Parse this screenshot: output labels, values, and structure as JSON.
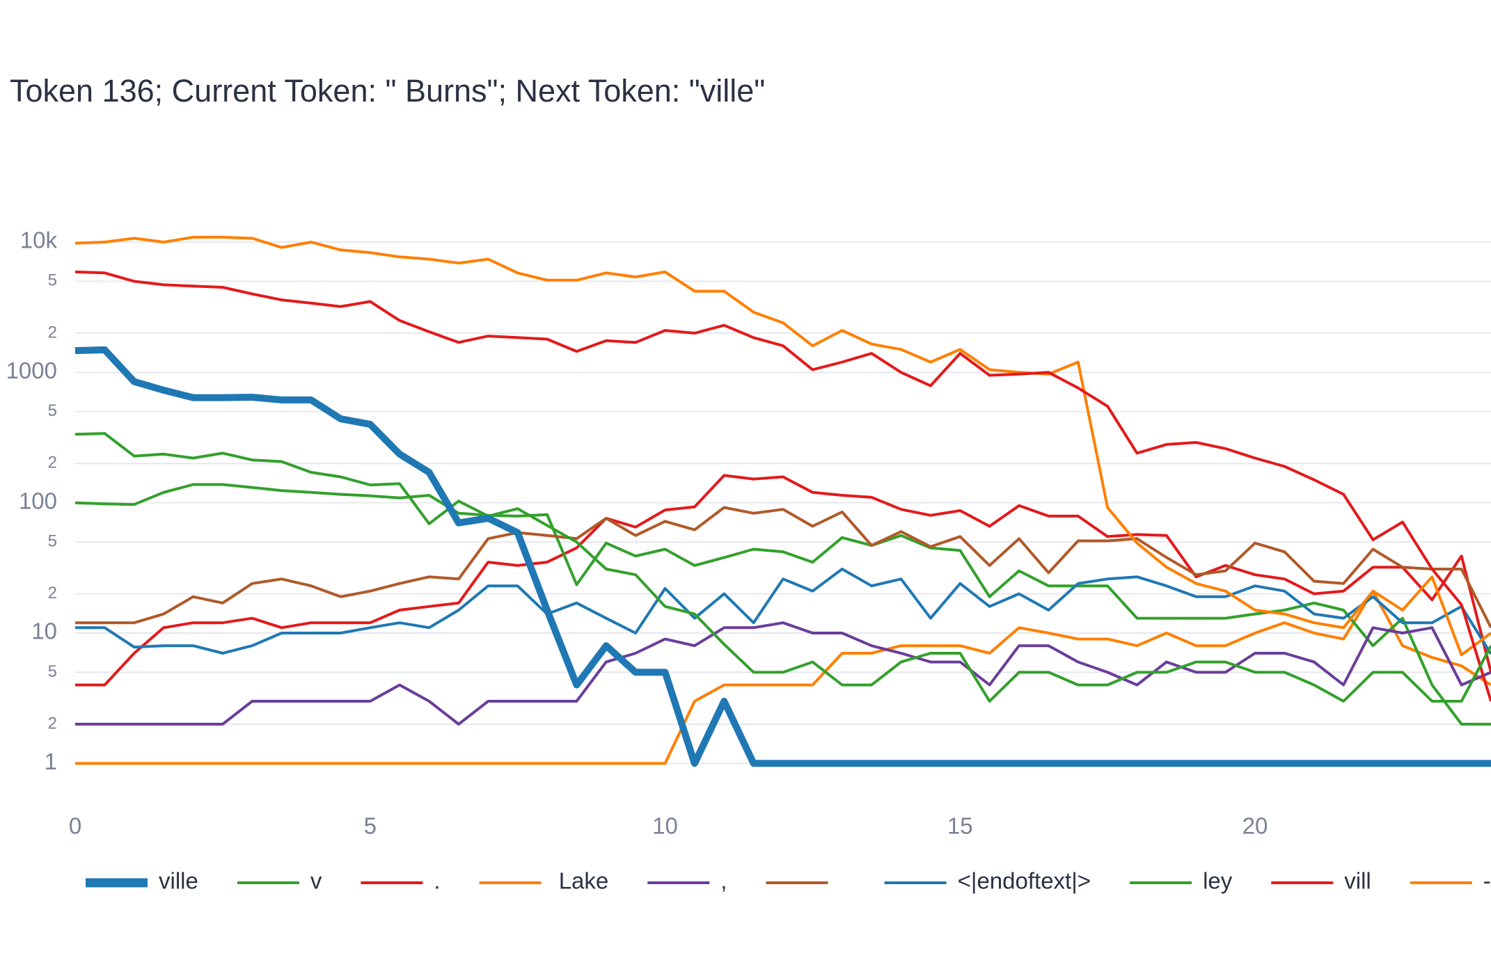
{
  "chart_data": {
    "type": "line",
    "title": "Token 136; Current Token: \" Burns\"; Next Token: \"ville\"",
    "log_y": true,
    "grid": true,
    "x": [
      0,
      0.5,
      1,
      1.5,
      2,
      2.5,
      3,
      3.5,
      4,
      4.5,
      5,
      5.5,
      6,
      6.5,
      7,
      7.5,
      8,
      8.5,
      9,
      9.5,
      10,
      10.5,
      11,
      11.5,
      12,
      12.5,
      13,
      13.5,
      14,
      14.5,
      15,
      15.5,
      16,
      16.5,
      17,
      17.5,
      18,
      18.5,
      19,
      19.5,
      20,
      20.5,
      21,
      21.5,
      22,
      22.5,
      23,
      23.5,
      24
    ],
    "xlim": [
      0,
      24
    ],
    "xticks": [
      0,
      5,
      10,
      15,
      20
    ],
    "ylim": [
      0.55,
      15000
    ],
    "yticks": [
      1,
      2,
      5,
      10,
      {
        "value": 20,
        "label": "2"
      },
      {
        "value": 50,
        "label": "5"
      },
      100,
      {
        "value": 200,
        "label": "2"
      },
      {
        "value": 500,
        "label": "5"
      },
      1000,
      {
        "value": 2000,
        "label": "2"
      },
      {
        "value": 5000,
        "label": "5"
      },
      {
        "value": 10000,
        "label": "10k"
      }
    ],
    "series": [
      {
        "name": "ville",
        "color": "#1f78b4",
        "width": 10,
        "values": [
          1470,
          1490,
          850,
          730,
          640,
          640,
          645,
          615,
          615,
          440,
          400,
          236,
          171,
          70,
          76,
          59,
          15,
          4,
          8,
          5,
          5,
          1,
          3,
          1,
          1,
          1,
          1,
          1,
          1,
          1,
          1,
          1,
          1,
          1,
          1,
          1,
          1,
          1,
          1,
          1,
          1,
          1,
          1,
          1,
          1,
          1,
          1,
          1,
          1
        ]
      },
      {
        "name": "v",
        "color": "#33a02c",
        "width": 4,
        "values": [
          335,
          340,
          228,
          236,
          220,
          240,
          213,
          207,
          171,
          158,
          137,
          140,
          69,
          103,
          79,
          90,
          67,
          50,
          31,
          28,
          16,
          14,
          8.2,
          5,
          5,
          6,
          4,
          4,
          6,
          7,
          7,
          3,
          5,
          5,
          4,
          4,
          5,
          5,
          6,
          6,
          5,
          5,
          4,
          3,
          5,
          5,
          3,
          3,
          8
        ]
      },
      {
        "name": ".",
        "color": "#e31a1c",
        "width": 4,
        "values": [
          5900,
          5800,
          5000,
          4700,
          4600,
          4500,
          4000,
          3600,
          3400,
          3200,
          3500,
          2500,
          2050,
          1700,
          1900,
          1850,
          1800,
          1450,
          1750,
          1700,
          2100,
          2000,
          2300,
          1850,
          1600,
          1050,
          1200,
          1400,
          1000,
          790,
          1400,
          950,
          970,
          1000,
          760,
          550,
          240,
          280,
          290,
          260,
          220,
          190,
          150,
          116,
          52,
          71,
          31,
          16.5,
          3
        ]
      },
      {
        "name": " Lake",
        "color": "#ff7f00",
        "width": 4,
        "values": [
          9800,
          10000,
          10700,
          10000,
          10900,
          10900,
          10700,
          9100,
          10000,
          8700,
          8300,
          7700,
          7400,
          6900,
          7400,
          5800,
          5100,
          5100,
          5800,
          5400,
          5900,
          4200,
          4200,
          2900,
          2400,
          1600,
          2100,
          1650,
          1500,
          1200,
          1500,
          1050,
          1000,
          970,
          1200,
          92,
          49,
          32,
          24,
          21,
          15,
          14,
          12,
          11,
          21,
          15,
          27,
          6.8,
          10
        ]
      },
      {
        "name": ",",
        "color": "#6a3d9a",
        "width": 4,
        "values": [
          2,
          2,
          2,
          2,
          2,
          2,
          3,
          3,
          3,
          3,
          3,
          4,
          3,
          2,
          3,
          3,
          3,
          3,
          6,
          7,
          9,
          8,
          11,
          11,
          12,
          10,
          10,
          8,
          7,
          6,
          6,
          4,
          8,
          8,
          6,
          5,
          4,
          6,
          5,
          5,
          7,
          7,
          6,
          4,
          11,
          10,
          11,
          4,
          5
        ]
      },
      {
        "name": " ",
        "color": "#b15928",
        "width": 4,
        "values": [
          12,
          12,
          12,
          14,
          19,
          17,
          24,
          26,
          23,
          19,
          21,
          24,
          27,
          26,
          53,
          59,
          56,
          53,
          76,
          56,
          72,
          62,
          92,
          83,
          89,
          66,
          85,
          47,
          60,
          46,
          55,
          33,
          53,
          29,
          51,
          51,
          53,
          38,
          28,
          30,
          49,
          42,
          25,
          24,
          44,
          32,
          31,
          31,
          11
        ]
      },
      {
        "name": "<|endoftext|>",
        "color": "#1f78b4",
        "width": 4,
        "values": [
          11,
          11,
          7.8,
          8,
          8,
          7,
          8,
          10,
          10,
          10,
          11,
          12,
          11,
          15,
          23,
          23,
          14,
          17,
          13,
          10,
          22,
          13,
          20,
          12,
          26,
          21,
          31,
          23,
          26,
          13,
          24,
          16,
          20,
          15,
          24,
          26,
          27,
          23,
          19,
          19,
          23,
          21,
          14,
          13,
          19,
          12,
          12,
          16,
          6.9
        ]
      },
      {
        "name": "ley",
        "color": "#33a02c",
        "width": 4,
        "values": [
          100,
          98,
          97,
          120,
          138,
          138,
          131,
          124,
          120,
          116,
          113,
          109,
          114,
          83,
          80,
          79,
          81,
          23.5,
          49,
          39,
          44,
          33,
          38,
          44,
          42,
          35,
          54,
          47,
          56,
          45,
          43,
          19,
          30,
          23,
          23,
          23,
          13,
          13,
          13,
          13,
          14,
          15,
          17,
          15,
          8,
          13,
          4,
          2,
          2
        ]
      },
      {
        "name": "vill",
        "color": "#e31a1c",
        "width": 4,
        "values": [
          4,
          4,
          7,
          11,
          12,
          12,
          13,
          11,
          12,
          12,
          12,
          15,
          16,
          17,
          35,
          33,
          35,
          45,
          76,
          65,
          88,
          93,
          162,
          152,
          158,
          120,
          114,
          110,
          89,
          80,
          87,
          66,
          95,
          79,
          79,
          55,
          57,
          56,
          27,
          33,
          28,
          26,
          20,
          21,
          32,
          32,
          18,
          39,
          5
        ]
      },
      {
        "name": "-",
        "color": "#ff7f00",
        "width": 4,
        "values": [
          1,
          1,
          1,
          1,
          1,
          1,
          1,
          1,
          1,
          1,
          1,
          1,
          1,
          1,
          1,
          1,
          1,
          1,
          1,
          1,
          1,
          3,
          4,
          4,
          4,
          4,
          7,
          7,
          8,
          8,
          8,
          7,
          11,
          10,
          9,
          9,
          8,
          10,
          8,
          8,
          10,
          12,
          10,
          9,
          21,
          8,
          6.5,
          5.6,
          4
        ]
      }
    ]
  }
}
